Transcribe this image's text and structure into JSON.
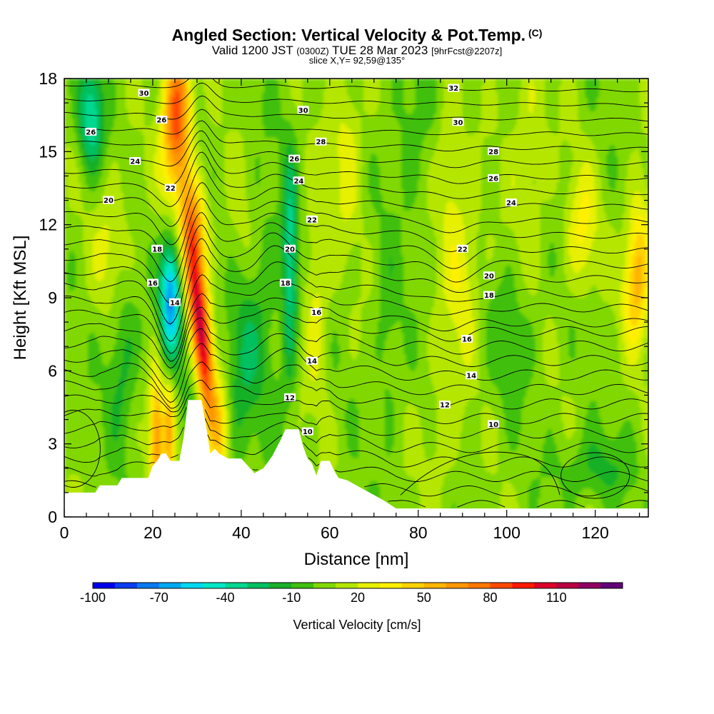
{
  "titles": {
    "main": "Angled Section: Vertical Velocity & Pot.Temp.",
    "main_suffix": "(C)",
    "valid_pre": "Valid 1200 JST",
    "valid_z": "(0300Z)",
    "valid_date": "TUE 28 Mar 2023",
    "valid_fcst": "[9hrFcst@2207z]",
    "slice": "slice X,Y= 92,59@135°"
  },
  "chart_data": {
    "type": "heatmap",
    "title": "Angled Section: Vertical Velocity & Pot.Temp.",
    "xlabel": "Distance [nm]",
    "ylabel": "Height [Kft MSL]",
    "xlim": [
      0,
      132
    ],
    "ylim": [
      0,
      18
    ],
    "x_ticks": [
      0,
      20,
      40,
      60,
      80,
      100,
      120
    ],
    "y_ticks": [
      0,
      3,
      6,
      9,
      12,
      15,
      18
    ],
    "grid": false,
    "colorbar": {
      "label": "Vertical Velocity [cm/s]",
      "levels": [
        -100,
        -90,
        -80,
        -70,
        -60,
        -50,
        -40,
        -30,
        -20,
        -10,
        0,
        10,
        20,
        30,
        40,
        50,
        60,
        70,
        80,
        90,
        100,
        110,
        120,
        130
      ],
      "tick_labels": [
        -100,
        -70,
        -40,
        -10,
        20,
        50,
        80,
        110
      ],
      "colors": [
        "#0000ee",
        "#0a3cf0",
        "#0a78f0",
        "#00a8f0",
        "#00d8f0",
        "#00e8c8",
        "#00d890",
        "#00c060",
        "#18b028",
        "#40c010",
        "#80d800",
        "#b4e600",
        "#e6f000",
        "#fff000",
        "#ffd200",
        "#ffb400",
        "#ff9600",
        "#ff7800",
        "#ff4800",
        "#ff1800",
        "#dc0028",
        "#b80040",
        "#900060",
        "#620078"
      ]
    },
    "contours": {
      "variable": "Pot.Temp.",
      "labels": [
        {
          "x": 25,
          "y": 8.8,
          "value": "14"
        },
        {
          "x": 56,
          "y": 6.4,
          "value": "14"
        },
        {
          "x": 92,
          "y": 5.8,
          "value": "14"
        },
        {
          "x": 20,
          "y": 9.6,
          "value": "16"
        },
        {
          "x": 57,
          "y": 8.4,
          "value": "16"
        },
        {
          "x": 91,
          "y": 7.3,
          "value": "16"
        },
        {
          "x": 21,
          "y": 11.0,
          "value": "18"
        },
        {
          "x": 50,
          "y": 9.6,
          "value": "18"
        },
        {
          "x": 96,
          "y": 9.1,
          "value": "18"
        },
        {
          "x": 51,
          "y": 11.0,
          "value": "20"
        },
        {
          "x": 96,
          "y": 9.9,
          "value": "20"
        },
        {
          "x": 10,
          "y": 13.0,
          "value": "20"
        },
        {
          "x": 24,
          "y": 13.5,
          "value": "22"
        },
        {
          "x": 56,
          "y": 12.2,
          "value": "22"
        },
        {
          "x": 90,
          "y": 11.0,
          "value": "22"
        },
        {
          "x": 16,
          "y": 14.6,
          "value": "24"
        },
        {
          "x": 53,
          "y": 13.8,
          "value": "24"
        },
        {
          "x": 101,
          "y": 12.9,
          "value": "24"
        },
        {
          "x": 22,
          "y": 16.3,
          "value": "26"
        },
        {
          "x": 52,
          "y": 14.7,
          "value": "26"
        },
        {
          "x": 97,
          "y": 13.9,
          "value": "26"
        },
        {
          "x": 6,
          "y": 15.8,
          "value": "26"
        },
        {
          "x": 58,
          "y": 15.4,
          "value": "28"
        },
        {
          "x": 97,
          "y": 15.0,
          "value": "28"
        },
        {
          "x": 18,
          "y": 17.4,
          "value": "30"
        },
        {
          "x": 54,
          "y": 16.7,
          "value": "30"
        },
        {
          "x": 89,
          "y": 16.2,
          "value": "30"
        },
        {
          "x": 88,
          "y": 17.6,
          "value": "32"
        },
        {
          "x": 51,
          "y": 4.9,
          "value": "12"
        },
        {
          "x": 86,
          "y": 4.6,
          "value": "12"
        },
        {
          "x": 55,
          "y": 3.5,
          "value": "10"
        },
        {
          "x": 97,
          "y": 3.8,
          "value": "10"
        }
      ]
    },
    "features": {
      "updraft_max": {
        "x": 32,
        "y": 8,
        "approx_value": 110
      },
      "downdraft_min": {
        "x": 24,
        "y": 9,
        "approx_value": -50
      },
      "terrain_peaks": [
        {
          "x": 29,
          "y": 4.8
        },
        {
          "x": 51,
          "y": 3.6
        }
      ]
    }
  }
}
